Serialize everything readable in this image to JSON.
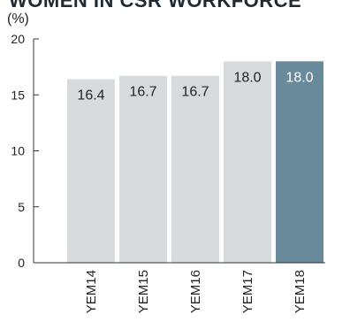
{
  "chart_data": {
    "type": "bar",
    "title": "WOMEN IN CSR WORKFORCE",
    "ylabel": "(%)",
    "xlabel": "",
    "categories": [
      "YEM14",
      "YEM15",
      "YEM16",
      "YEM17",
      "YEM18"
    ],
    "values": [
      16.4,
      16.7,
      16.7,
      18.0,
      18.0
    ],
    "data_labels": [
      "16.4",
      "16.7",
      "16.7",
      "18.0",
      "18.0"
    ],
    "ylim": [
      0,
      20
    ],
    "yticks": [
      "0",
      "5",
      "10",
      "15",
      "20"
    ],
    "highlight_index": 4,
    "legend": "none",
    "grid": false,
    "colors": {
      "bar": "#d7dbde",
      "highlight_bar": "#688a9a",
      "label_dark": "#222222",
      "label_light": "#ffffff",
      "axis": "#333333"
    }
  }
}
